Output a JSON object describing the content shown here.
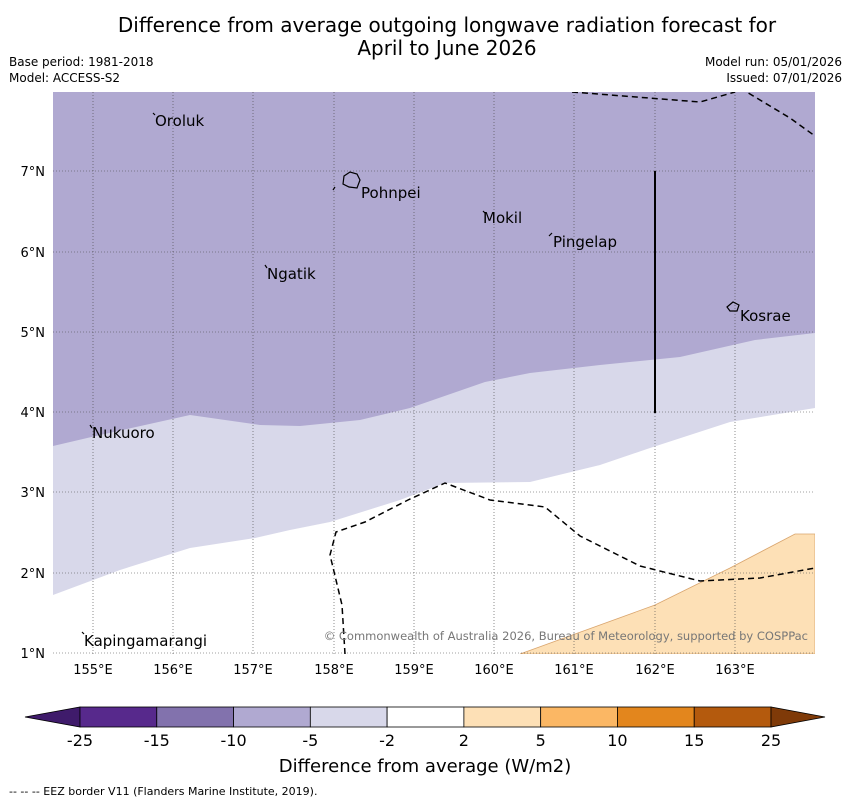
{
  "title_line1": "Difference from average outgoing longwave radiation forecast for",
  "title_line2": "April to June 2026",
  "base_period": "Base period: 1981-2018",
  "model": "Model: ACCESS-S2",
  "model_run": "Model run: 05/01/2026",
  "issued": "Issued: 07/01/2026",
  "copyright": "© Commonwealth of Australia 2026, Bureau of Meteorology, supported by COSPPac",
  "footer": "--  --  -- EEZ border V11 (Flanders Marine Institute, 2019).",
  "colorbar": {
    "label": "Difference from average (W/m2)",
    "ticks": [
      "-25",
      "-15",
      "-10",
      "-5",
      "-2",
      "2",
      "5",
      "10",
      "15",
      "25"
    ],
    "colors": [
      "#3f1b6b",
      "#57298c",
      "#8272ad",
      "#b0a9d1",
      "#d8d8ea",
      "#ffffff",
      "#fde0b6",
      "#fbb764",
      "#e3861d",
      "#b45a0d",
      "#7f3a08"
    ]
  },
  "map": {
    "lat_labels": [
      "7°N",
      "6°N",
      "5°N",
      "4°N",
      "3°N",
      "2°N",
      "1°N"
    ],
    "lon_labels": [
      "155°E",
      "156°E",
      "157°E",
      "158°E",
      "159°E",
      "160°E",
      "161°E",
      "162°E",
      "163°E"
    ],
    "places": [
      "Oroluk",
      "Pohnpei",
      "Mokil",
      "Pingelap",
      "Ngatik",
      "Kosrae",
      "Nukuoro",
      "Kapingamarangi"
    ]
  }
}
